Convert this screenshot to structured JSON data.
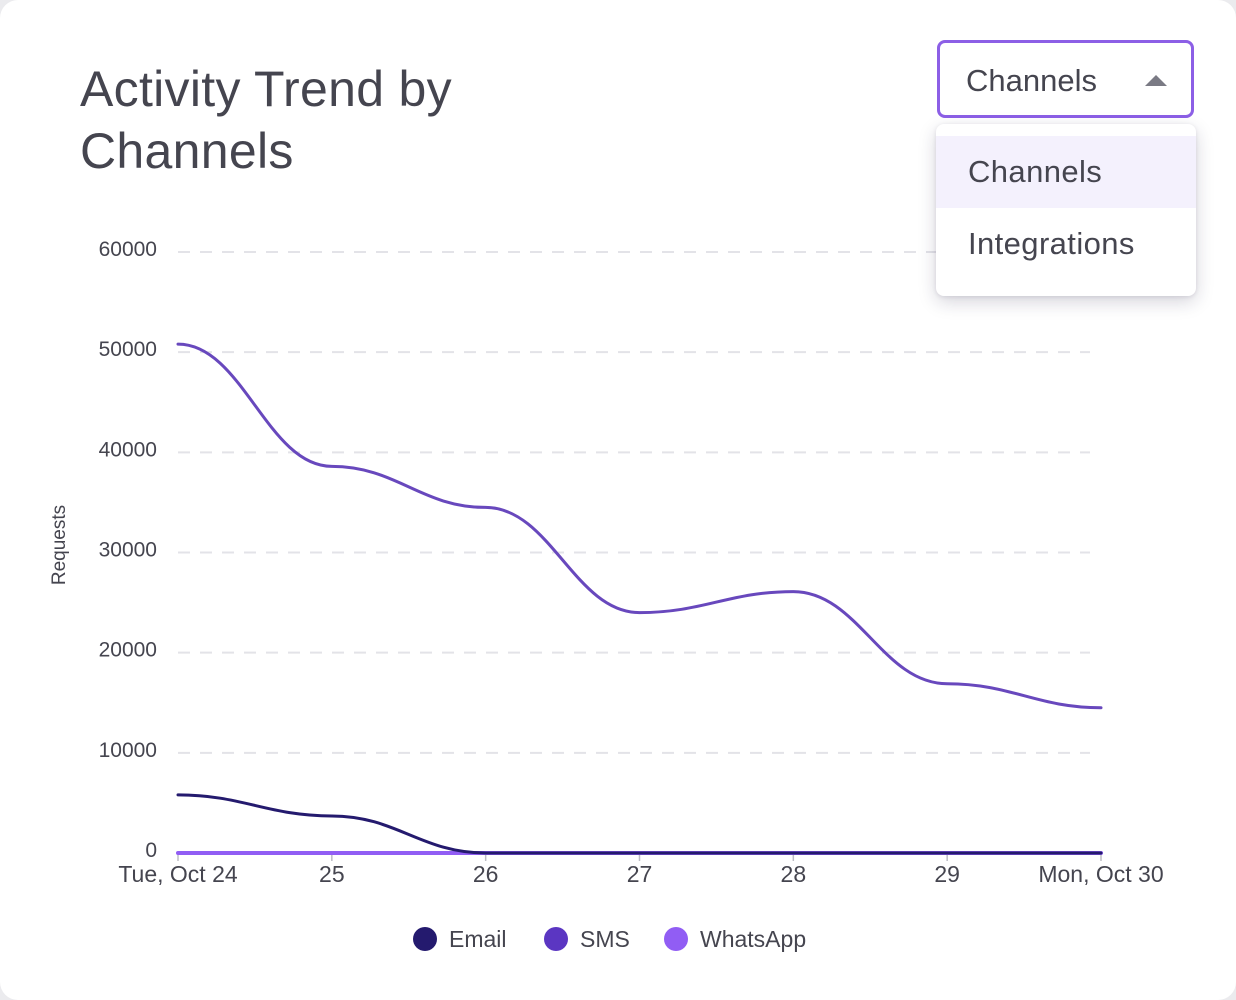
{
  "card": {
    "title": "Activity Trend by Channels"
  },
  "dropdown": {
    "value": "Channels",
    "open": true,
    "options": [
      {
        "label": "Channels",
        "selected": true
      },
      {
        "label": "Integrations",
        "selected": false
      }
    ]
  },
  "chart_data": {
    "type": "line",
    "title": "Activity Trend by Channels",
    "xlabel": "",
    "ylabel": "Requests",
    "x_tick_labels": [
      "Tue, Oct 24",
      "25",
      "26",
      "27",
      "28",
      "29",
      "Mon, Oct 30"
    ],
    "x": [
      "2023-10-24",
      "2023-10-25",
      "2023-10-26",
      "2023-10-27",
      "2023-10-28",
      "2023-10-29",
      "2023-10-30"
    ],
    "ylim": [
      0,
      60000
    ],
    "y_ticks": [
      0,
      10000,
      20000,
      30000,
      40000,
      50000,
      60000
    ],
    "grid": true,
    "legend_position": "bottom-center",
    "series": [
      {
        "name": "Email",
        "color": "#241a6e",
        "values": [
          5800,
          3700,
          0,
          0,
          0,
          0,
          0
        ]
      },
      {
        "name": "SMS",
        "color": "#6848bd",
        "values": [
          50800,
          38600,
          34500,
          24000,
          26100,
          16900,
          14500
        ]
      },
      {
        "name": "WhatsApp",
        "color": "#915df4",
        "values": [
          0,
          0,
          0,
          0,
          0,
          0,
          0
        ]
      }
    ]
  }
}
